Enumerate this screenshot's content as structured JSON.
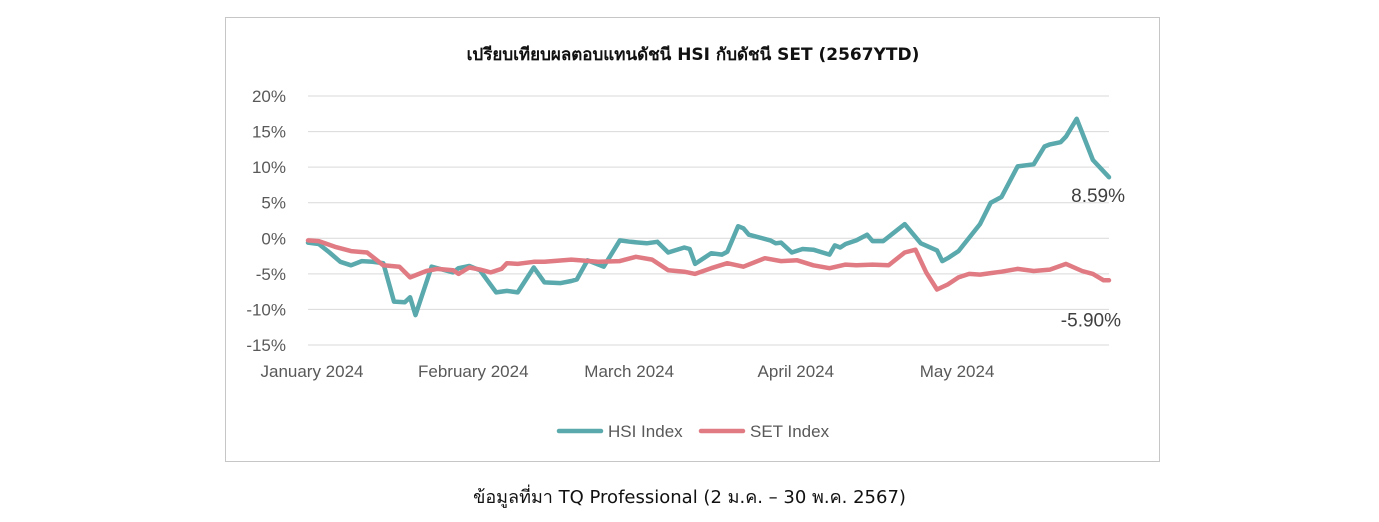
{
  "caption": "ข้อมูลที่มา TQ Professional (2 ม.ค. – 30 พ.ค. 2567)",
  "chart_data": {
    "type": "line",
    "title": "เปรียบเทียบผลตอบแทนดัชนี HSI กับดัชนี SET (2567YTD)",
    "xlabel": "",
    "ylabel": "",
    "x_ticks": [
      "January 2024",
      "February 2024",
      "March 2024",
      "April 2024",
      "May 2024"
    ],
    "x_tick_dates": [
      "2024-01-02",
      "2024-02-01",
      "2024-03-01",
      "2024-04-01",
      "2024-05-01"
    ],
    "xlim": [
      "2024-01-02",
      "2024-05-30"
    ],
    "y_ticks": [
      "20%",
      "15%",
      "10%",
      "5%",
      "0%",
      "-5%",
      "-10%",
      "-15%"
    ],
    "y_tick_values": [
      20,
      15,
      10,
      5,
      0,
      -5,
      -10,
      -15
    ],
    "ylim": [
      -15,
      20
    ],
    "grid": true,
    "legend_position": "bottom",
    "annotations": [
      {
        "text": "8.59%",
        "series": "HSI Index"
      },
      {
        "text": "-5.90%",
        "series": "SET Index"
      }
    ],
    "series": [
      {
        "name": "HSI Index",
        "color": "#5aa9ad",
        "x": [
          "2024-01-02",
          "2024-01-04",
          "2024-01-06",
          "2024-01-08",
          "2024-01-10",
          "2024-01-12",
          "2024-01-14",
          "2024-01-16",
          "2024-01-18",
          "2024-01-20",
          "2024-01-21",
          "2024-01-22",
          "2024-01-25",
          "2024-01-28",
          "2024-01-29",
          "2024-01-30",
          "2024-02-01",
          "2024-02-02",
          "2024-02-03",
          "2024-02-06",
          "2024-02-08",
          "2024-02-09",
          "2024-02-10",
          "2024-02-13",
          "2024-02-15",
          "2024-02-18",
          "2024-02-20",
          "2024-02-21",
          "2024-02-23",
          "2024-02-26",
          "2024-02-29",
          "2024-03-02",
          "2024-03-05",
          "2024-03-07",
          "2024-03-09",
          "2024-03-12",
          "2024-03-13",
          "2024-03-14",
          "2024-03-17",
          "2024-03-19",
          "2024-03-20",
          "2024-03-22",
          "2024-03-23",
          "2024-03-24",
          "2024-03-28",
          "2024-03-29",
          "2024-03-30",
          "2024-04-01",
          "2024-04-03",
          "2024-04-05",
          "2024-04-08",
          "2024-04-09",
          "2024-04-10",
          "2024-04-11",
          "2024-04-13",
          "2024-04-15",
          "2024-04-16",
          "2024-04-18",
          "2024-04-22",
          "2024-04-25",
          "2024-04-28",
          "2024-04-29",
          "2024-04-30",
          "2024-05-02",
          "2024-05-06",
          "2024-05-08",
          "2024-05-10",
          "2024-05-13",
          "2024-05-16",
          "2024-05-18",
          "2024-05-19",
          "2024-05-21",
          "2024-05-22",
          "2024-05-24",
          "2024-05-27",
          "2024-05-30"
        ],
        "values": [
          -0.6,
          -0.8,
          -2.0,
          -3.3,
          -3.8,
          -3.2,
          -3.3,
          -3.5,
          -8.9,
          -9.0,
          -8.3,
          -10.8,
          -4.0,
          -4.6,
          -4.8,
          -4.2,
          -3.9,
          -4.2,
          -4.5,
          -7.6,
          -7.4,
          -7.5,
          -7.6,
          -4.1,
          -6.2,
          -6.3,
          -6.0,
          -5.8,
          -3.1,
          -4.0,
          -0.3,
          -0.5,
          -0.7,
          -0.5,
          -2.0,
          -1.3,
          -1.5,
          -3.6,
          -2.1,
          -2.3,
          -1.9,
          1.7,
          1.4,
          0.5,
          -0.3,
          -0.7,
          -0.6,
          -2.0,
          -1.5,
          -1.6,
          -2.3,
          -1.0,
          -1.3,
          -0.8,
          -0.3,
          0.5,
          -0.4,
          -0.4,
          2.0,
          -0.7,
          -1.7,
          -3.2,
          -2.8,
          -1.8,
          2.0,
          5.0,
          5.8,
          10.1,
          10.4,
          12.9,
          13.2,
          13.5,
          14.3,
          16.8,
          11.0,
          8.59
        ]
      },
      {
        "name": "SET Index",
        "color": "#e07b83",
        "x": [
          "2024-01-02",
          "2024-01-04",
          "2024-01-07",
          "2024-01-10",
          "2024-01-13",
          "2024-01-16",
          "2024-01-19",
          "2024-01-21",
          "2024-01-24",
          "2024-01-26",
          "2024-01-29",
          "2024-01-30",
          "2024-02-01",
          "2024-02-03",
          "2024-02-05",
          "2024-02-07",
          "2024-02-08",
          "2024-02-10",
          "2024-02-11",
          "2024-02-13",
          "2024-02-15",
          "2024-02-20",
          "2024-02-25",
          "2024-02-29",
          "2024-03-03",
          "2024-03-06",
          "2024-03-09",
          "2024-03-12",
          "2024-03-14",
          "2024-03-17",
          "2024-03-20",
          "2024-03-23",
          "2024-03-27",
          "2024-03-30",
          "2024-04-02",
          "2024-04-05",
          "2024-04-08",
          "2024-04-11",
          "2024-04-13",
          "2024-04-16",
          "2024-04-19",
          "2024-04-22",
          "2024-04-24",
          "2024-04-26",
          "2024-04-28",
          "2024-04-30",
          "2024-05-02",
          "2024-05-04",
          "2024-05-06",
          "2024-05-08",
          "2024-05-10",
          "2024-05-13",
          "2024-05-16",
          "2024-05-19",
          "2024-05-22",
          "2024-05-25",
          "2024-05-27",
          "2024-05-29",
          "2024-05-30"
        ],
        "values": [
          -0.3,
          -0.4,
          -1.2,
          -1.8,
          -2.0,
          -3.8,
          -4.0,
          -5.5,
          -4.6,
          -4.3,
          -4.5,
          -5.0,
          -4.1,
          -4.4,
          -4.8,
          -4.3,
          -3.5,
          -3.6,
          -3.5,
          -3.3,
          -3.3,
          -3.0,
          -3.3,
          -3.2,
          -2.6,
          -3.0,
          -4.5,
          -4.7,
          -5.0,
          -4.2,
          -3.5,
          -4.0,
          -2.8,
          -3.2,
          -3.1,
          -3.8,
          -4.2,
          -3.7,
          -3.8,
          -3.7,
          -3.8,
          -2.0,
          -1.6,
          -4.8,
          -7.2,
          -6.5,
          -5.5,
          -5.0,
          -5.1,
          -4.9,
          -4.7,
          -4.3,
          -4.6,
          -4.4,
          -3.6,
          -4.6,
          -5.0,
          -5.9,
          -5.9
        ]
      }
    ]
  }
}
